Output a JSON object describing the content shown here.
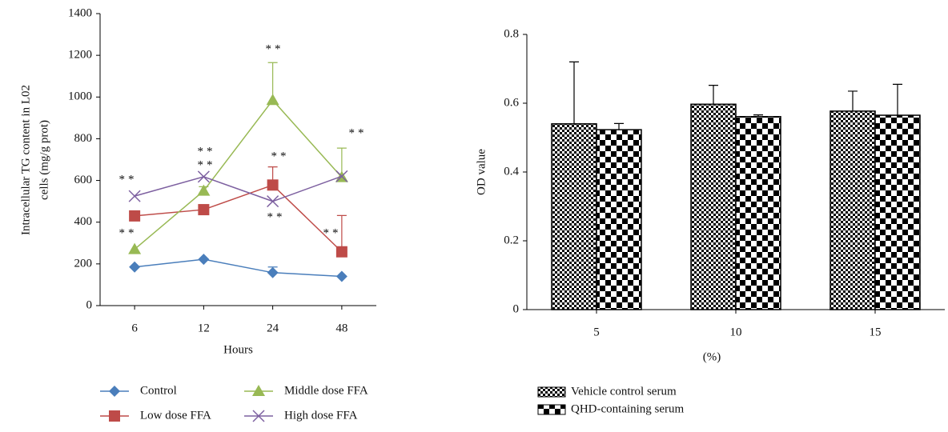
{
  "chart_data": [
    {
      "type": "line",
      "x_label": "Hours",
      "y_label": [
        "Intracellular TG content in L02",
        "cells (mg/g prot)"
      ],
      "categories": [
        "6",
        "12",
        "24",
        "48"
      ],
      "ylim": [
        0,
        1400
      ],
      "yticks": [
        0,
        200,
        400,
        600,
        800,
        1000,
        1200,
        1400
      ],
      "series": [
        {
          "name": "Control",
          "color": "#4a7ebb",
          "marker": "diamond",
          "values": [
            185,
            222,
            158,
            140
          ],
          "errors": [
            null,
            null,
            27,
            null
          ]
        },
        {
          "name": "Low dose FFA",
          "color": "#be4b48",
          "marker": "square",
          "values": [
            430,
            460,
            578,
            258
          ],
          "errors": [
            null,
            null,
            87,
            174
          ]
        },
        {
          "name": "Middle dose FFA",
          "color": "#98b954",
          "marker": "triangle",
          "values": [
            270,
            550,
            985,
            615
          ],
          "errors": [
            null,
            20,
            180,
            140
          ]
        },
        {
          "name": "High dose FFA",
          "color": "#7d60a0",
          "marker": "x",
          "values": [
            525,
            618,
            500,
            620
          ],
          "errors": [
            null,
            null,
            null,
            null
          ]
        }
      ],
      "annotations": [
        "**",
        "**",
        "**",
        "**",
        "**",
        "**",
        "**",
        "**",
        "**"
      ]
    },
    {
      "type": "bar",
      "x_label": "(%)",
      "y_label": [
        "OD value"
      ],
      "categories": [
        "5",
        "10",
        "15"
      ],
      "ylim": [
        0,
        0.8
      ],
      "yticks": [
        0,
        0.2,
        0.4,
        0.6,
        0.8
      ],
      "series": [
        {
          "name": "Vehicle control serum",
          "values": [
            0.54,
            0.597,
            0.577
          ],
          "errors": [
            0.18,
            0.055,
            0.058
          ]
        },
        {
          "name": "QHD-containing serum",
          "values": [
            0.523,
            0.561,
            0.565
          ],
          "errors": [
            0.018,
            0.005,
            0.09
          ]
        }
      ]
    }
  ]
}
